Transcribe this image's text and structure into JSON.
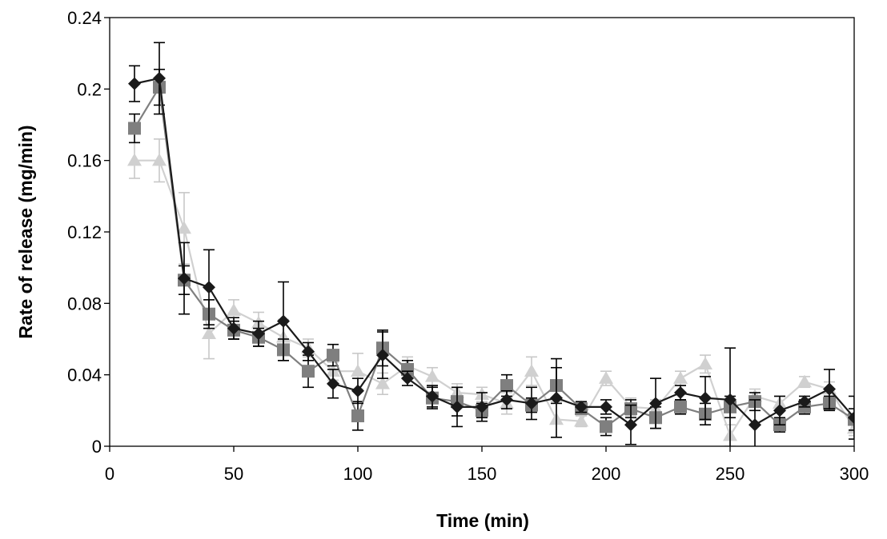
{
  "chart_data": {
    "type": "line",
    "title": "",
    "xlabel": "Time (min)",
    "ylabel": "Rate of release (mg/min)",
    "xlim": [
      0,
      300
    ],
    "ylim": [
      0,
      0.24
    ],
    "x_ticks": [
      "0",
      "50",
      "100",
      "150",
      "200",
      "250",
      "300"
    ],
    "y_ticks": [
      "0",
      "0.04",
      "0.08",
      "0.12",
      "0.16",
      "0.2",
      "0.24"
    ],
    "grid": false,
    "legend": "none",
    "x": [
      10,
      20,
      30,
      40,
      50,
      60,
      70,
      80,
      90,
      100,
      110,
      120,
      130,
      140,
      150,
      160,
      170,
      180,
      190,
      200,
      210,
      220,
      230,
      240,
      250,
      260,
      270,
      280,
      290,
      300
    ],
    "series": [
      {
        "marker": "diamond",
        "color": "#1a1a1a",
        "values": [
          0.203,
          0.206,
          0.094,
          0.089,
          0.066,
          0.063,
          0.07,
          0.053,
          0.035,
          0.031,
          0.051,
          0.038,
          0.028,
          0.022,
          0.022,
          0.026,
          0.024,
          0.027,
          0.022,
          0.022,
          0.012,
          0.024,
          0.03,
          0.027,
          0.026,
          0.012,
          0.02,
          0.025,
          0.032,
          0.016
        ],
        "error": [
          0.01,
          0.02,
          0.02,
          0.021,
          0.006,
          0.007,
          0.022,
          0.005,
          0.008,
          0.007,
          0.013,
          0.004,
          0.006,
          0.011,
          0.008,
          0.005,
          0.009,
          0.022,
          0.003,
          0.004,
          0.011,
          0.014,
          0.004,
          0.012,
          0.029,
          0.014,
          0.008,
          0.003,
          0.011,
          0.012
        ]
      },
      {
        "marker": "square",
        "color": "#7f7f7f",
        "values": [
          0.178,
          0.201,
          0.093,
          0.074,
          0.065,
          0.061,
          0.054,
          0.042,
          0.051,
          0.017,
          0.055,
          0.043,
          0.027,
          0.025,
          0.02,
          0.034,
          0.023,
          0.034,
          0.021,
          0.011,
          0.021,
          0.016,
          0.022,
          0.018,
          0.022,
          0.025,
          0.012,
          0.022,
          0.024,
          0.015
        ],
        "error": [
          0.008,
          0.01,
          0.008,
          0.008,
          0.005,
          0.005,
          0.006,
          0.009,
          0.006,
          0.008,
          0.01,
          0.005,
          0.006,
          0.008,
          0.004,
          0.006,
          0.004,
          0.01,
          0.003,
          0.005,
          0.005,
          0.006,
          0.004,
          0.006,
          0.006,
          0.005,
          0.004,
          0.004,
          0.004,
          0.006
        ]
      },
      {
        "marker": "triangle",
        "color": "#d0d0d0",
        "values": [
          0.16,
          0.16,
          0.122,
          0.063,
          0.076,
          0.069,
          0.061,
          0.055,
          0.042,
          0.042,
          0.035,
          0.045,
          0.039,
          0.03,
          0.029,
          0.024,
          0.042,
          0.015,
          0.014,
          0.038,
          0.022,
          0.021,
          0.038,
          0.046,
          0.006,
          0.028,
          0.024,
          0.036,
          0.032,
          0.01
        ],
        "error": [
          0.01,
          0.012,
          0.02,
          0.014,
          0.006,
          0.006,
          0.01,
          0.005,
          0.005,
          0.01,
          0.006,
          0.005,
          0.005,
          0.005,
          0.004,
          0.006,
          0.008,
          0.01,
          0.003,
          0.004,
          0.005,
          0.005,
          0.004,
          0.005,
          0.006,
          0.004,
          0.004,
          0.003,
          0.004,
          0.004
        ]
      }
    ]
  }
}
